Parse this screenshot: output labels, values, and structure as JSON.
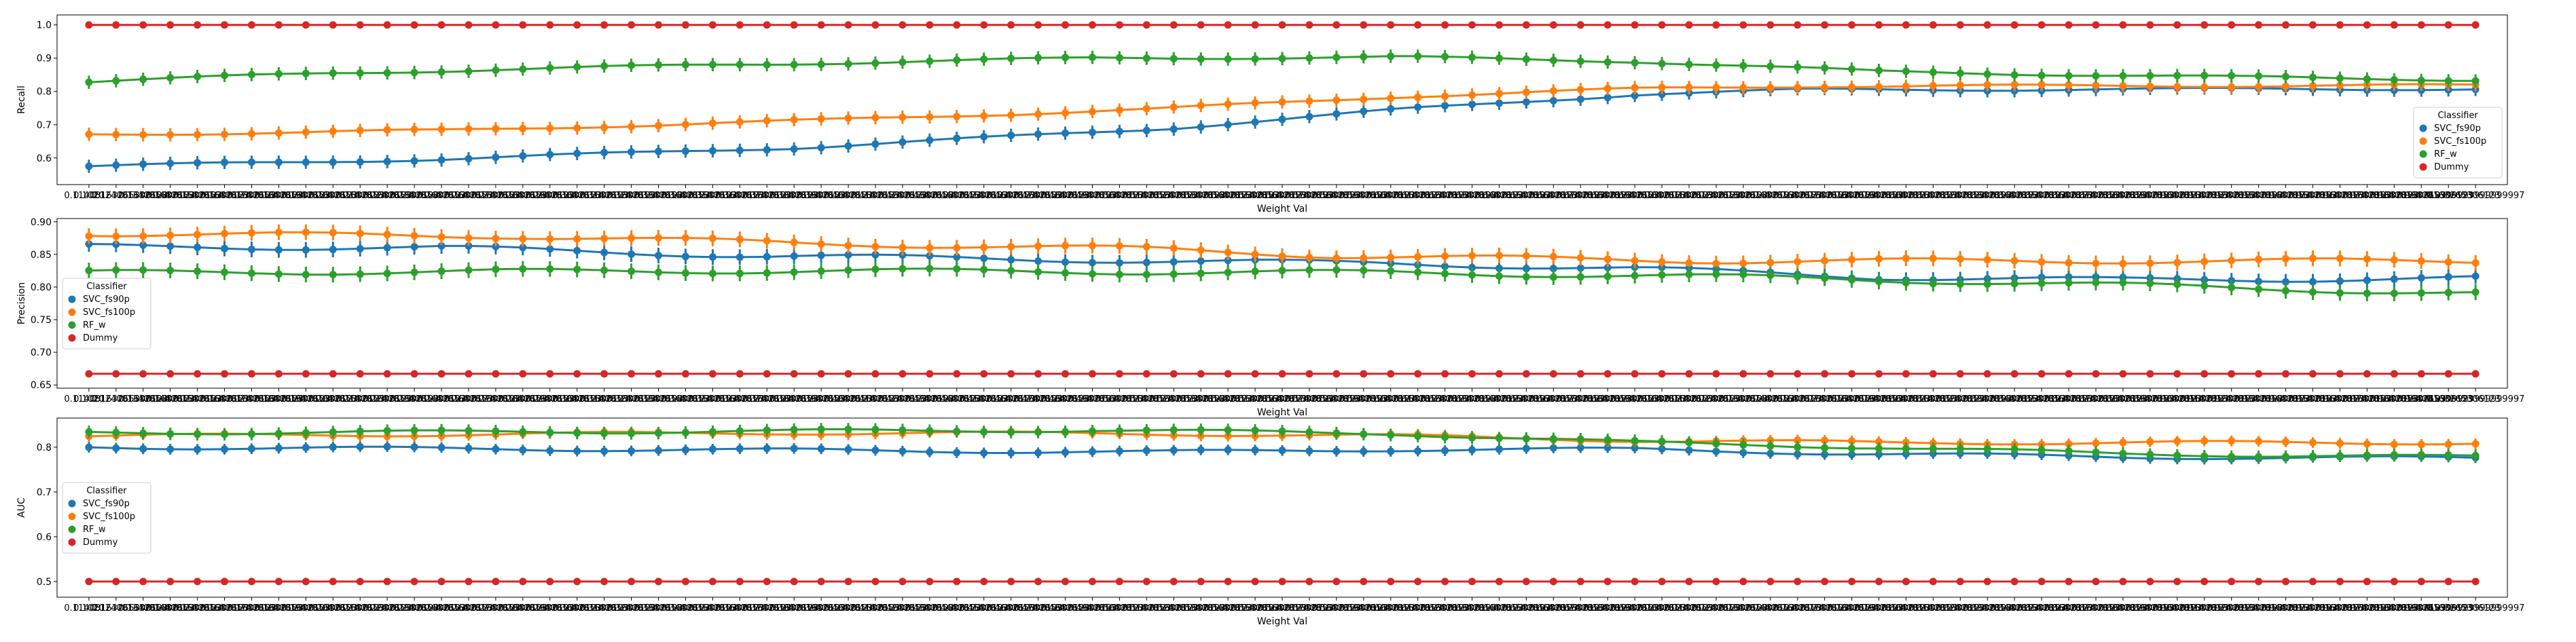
{
  "chart_data": [
    {
      "type": "line",
      "ylabel": "Recall",
      "xlabel": "Weight Val",
      "ylim": [
        0.52,
        1.03
      ],
      "yticks": [
        0.6,
        0.7,
        0.8,
        0.9,
        1.0
      ],
      "legend": {
        "title": "Classifier",
        "placement": "lower-right"
      },
      "series": [
        {
          "name": "SVC_fs90p",
          "color": "#1f77b4",
          "start": 0.575,
          "end": 0.808,
          "points": [
            [
              0,
              0.575
            ],
            [
              0.15,
              0.597
            ],
            [
              0.3,
              0.632
            ],
            [
              0.45,
              0.688
            ],
            [
              0.55,
              0.746
            ],
            [
              0.65,
              0.792
            ],
            [
              0.72,
              0.805
            ],
            [
              1.0,
              0.808
            ]
          ],
          "err": 0.02
        },
        {
          "name": "SVC_fs100p",
          "color": "#ff7f0e",
          "start": 0.67,
          "end": 0.818,
          "points": [
            [
              0,
              0.67
            ],
            [
              0.15,
              0.683
            ],
            [
              0.3,
              0.712
            ],
            [
              0.45,
              0.748
            ],
            [
              0.55,
              0.785
            ],
            [
              0.65,
              0.808
            ],
            [
              0.72,
              0.816
            ],
            [
              1.0,
              0.818
            ]
          ],
          "err": 0.02
        },
        {
          "name": "RF_w",
          "color": "#2ca02c",
          "start": 0.83,
          "end": 0.835,
          "points": [
            [
              0,
              0.83
            ],
            [
              0.1,
              0.855
            ],
            [
              0.25,
              0.878
            ],
            [
              0.42,
              0.9
            ],
            [
              0.55,
              0.903
            ],
            [
              0.65,
              0.89
            ],
            [
              0.75,
              0.86
            ],
            [
              0.88,
              0.845
            ],
            [
              1.0,
              0.835
            ]
          ],
          "err": 0.02
        },
        {
          "name": "Dummy",
          "color": "#d62728",
          "start": 1.0,
          "end": 1.0,
          "points": [
            [
              0,
              1.0
            ],
            [
              1.0,
              1.0
            ]
          ],
          "err": 0.0
        }
      ]
    },
    {
      "type": "line",
      "ylabel": "Precision",
      "xlabel": "Weight Val",
      "ylim": [
        0.645,
        0.905
      ],
      "yticks": [
        0.65,
        0.7,
        0.75,
        0.8,
        0.85,
        0.9
      ],
      "legend": {
        "title": "Classifier",
        "placement": "center-left"
      },
      "series": [
        {
          "name": "SVC_fs90p",
          "color": "#1f77b4",
          "start": 0.862,
          "end": 0.813,
          "points": [
            [
              0,
              0.862
            ],
            [
              0.15,
              0.86
            ],
            [
              0.28,
              0.848
            ],
            [
              0.45,
              0.84
            ],
            [
              0.55,
              0.836
            ],
            [
              0.65,
              0.828
            ],
            [
              0.75,
              0.815
            ],
            [
              0.85,
              0.811
            ],
            [
              1.0,
              0.813
            ]
          ],
          "err": 0.012
        },
        {
          "name": "SVC_fs100p",
          "color": "#ff7f0e",
          "start": 0.882,
          "end": 0.84,
          "points": [
            [
              0,
              0.882
            ],
            [
              0.18,
              0.878
            ],
            [
              0.3,
              0.867
            ],
            [
              0.45,
              0.858
            ],
            [
              0.52,
              0.848
            ],
            [
              0.6,
              0.844
            ],
            [
              0.68,
              0.84
            ],
            [
              1.0,
              0.84
            ]
          ],
          "err": 0.012
        },
        {
          "name": "RF_w",
          "color": "#2ca02c",
          "start": 0.822,
          "end": 0.79,
          "points": [
            [
              0,
              0.822
            ],
            [
              0.3,
              0.825
            ],
            [
              0.45,
              0.823
            ],
            [
              0.55,
              0.822
            ],
            [
              0.7,
              0.815
            ],
            [
              0.85,
              0.803
            ],
            [
              1.0,
              0.79
            ]
          ],
          "err": 0.012
        },
        {
          "name": "Dummy",
          "color": "#d62728",
          "start": 0.667,
          "end": 0.667,
          "points": [
            [
              0,
              0.667
            ],
            [
              1.0,
              0.667
            ]
          ],
          "err": 0.0
        }
      ]
    },
    {
      "type": "line",
      "ylabel": "AUC",
      "xlabel": "Weight Val",
      "ylim": [
        0.465,
        0.865
      ],
      "yticks": [
        0.5,
        0.6,
        0.7,
        0.8
      ],
      "legend": {
        "title": "Classifier",
        "placement": "center-left"
      },
      "series": [
        {
          "name": "SVC_fs90p",
          "color": "#1f77b4",
          "start": 0.8,
          "end": 0.775,
          "points": [
            [
              0,
              0.8
            ],
            [
              0.3,
              0.793
            ],
            [
              0.45,
              0.789
            ],
            [
              0.55,
              0.795
            ],
            [
              0.65,
              0.795
            ],
            [
              0.75,
              0.785
            ],
            [
              0.85,
              0.778
            ],
            [
              1.0,
              0.775
            ]
          ],
          "err": 0.012
        },
        {
          "name": "SVC_fs100p",
          "color": "#ff7f0e",
          "start": 0.825,
          "end": 0.81,
          "points": [
            [
              0,
              0.825
            ],
            [
              0.3,
              0.832
            ],
            [
              0.45,
              0.83
            ],
            [
              0.55,
              0.825
            ],
            [
              0.65,
              0.815
            ],
            [
              0.75,
              0.81
            ],
            [
              1.0,
              0.81
            ]
          ],
          "err": 0.012
        },
        {
          "name": "RF_w",
          "color": "#2ca02c",
          "start": 0.832,
          "end": 0.778,
          "points": [
            [
              0,
              0.832
            ],
            [
              0.25,
              0.835
            ],
            [
              0.42,
              0.838
            ],
            [
              0.55,
              0.83
            ],
            [
              0.65,
              0.81
            ],
            [
              0.75,
              0.8
            ],
            [
              0.85,
              0.785
            ],
            [
              1.0,
              0.778
            ]
          ],
          "err": 0.014
        },
        {
          "name": "Dummy",
          "color": "#d62728",
          "start": 0.5,
          "end": 0.5,
          "points": [
            [
              0,
              0.5
            ],
            [
              1.0,
              0.5
            ]
          ],
          "err": 0.0
        }
      ]
    }
  ],
  "x_axis": {
    "n_points": 89,
    "start_tick": "0.1020",
    "end_tick": "0.9999999999999997",
    "tick_text_fragment": "408163265306123"
  }
}
